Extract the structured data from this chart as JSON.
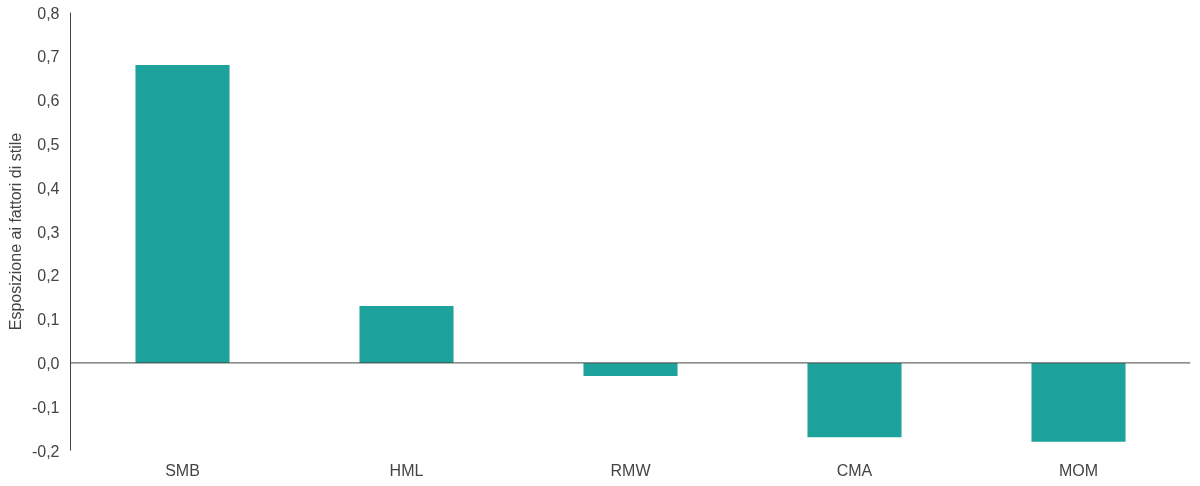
{
  "chart_data": {
    "type": "bar",
    "ylabel": "Esposizione ai fattori di stile",
    "categories": [
      "SMB",
      "HML",
      "RMW",
      "CMA",
      "MOM"
    ],
    "values": [
      0.68,
      0.13,
      -0.03,
      -0.17,
      -0.18
    ],
    "color": "#1da39b",
    "ylim": [
      -0.2,
      0.8
    ],
    "yticks": [
      {
        "value": -0.2,
        "label": "-0,2"
      },
      {
        "value": -0.1,
        "label": "-0,1"
      },
      {
        "value": 0.0,
        "label": "0,0"
      },
      {
        "value": 0.1,
        "label": "0,1"
      },
      {
        "value": 0.2,
        "label": "0,2"
      },
      {
        "value": 0.3,
        "label": "0,3"
      },
      {
        "value": 0.4,
        "label": "0,4"
      },
      {
        "value": 0.5,
        "label": "0,5"
      },
      {
        "value": 0.6,
        "label": "0,6"
      },
      {
        "value": 0.7,
        "label": "0,7"
      },
      {
        "value": 0.8,
        "label": "0,8"
      }
    ]
  }
}
